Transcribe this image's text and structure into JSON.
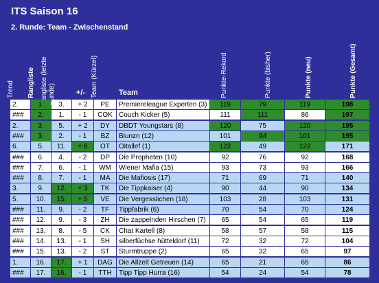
{
  "header": {
    "title": "ITS Saison 16",
    "subtitle": "2. Runde: Team - Zwischenstand"
  },
  "table": {
    "columns": [
      "Trend",
      "Rangliste",
      "Rangliste (letzte Runde)",
      "+/-",
      "Team (Kürzel)",
      "Team",
      "Punkte-Rekord",
      "Punkte (bisher)",
      "Punkte (neu)",
      "Punkte (Gesamt)"
    ],
    "rows": [
      [
        "2.",
        "1.",
        "3.",
        "+ 2",
        "PE",
        "Premiereleague Experten (3)",
        "119",
        "79",
        "119",
        "198"
      ],
      [
        "###",
        "2.",
        "1.",
        "- 1",
        "COK",
        "Couch Kicker (5)",
        "111",
        "111",
        "86",
        "197"
      ],
      [
        "2.",
        "3.",
        "5.",
        "+ 2",
        "DY",
        "DBDT Youngstars (8)",
        "120",
        "75",
        "120",
        "195"
      ],
      [
        "###",
        "3.",
        "2.",
        "- 1",
        "BZ",
        "Blunzn (12)",
        "101",
        "94",
        "101",
        "195"
      ],
      [
        "6.",
        "5.",
        "11.",
        "+ 6",
        "OT",
        "Oitallef (1)",
        "122",
        "49",
        "122",
        "171"
      ],
      [
        "###",
        "6.",
        "4.",
        "- 2",
        "DP",
        "Die Propheten (10)",
        "92",
        "76",
        "92",
        "168"
      ],
      [
        "###",
        "7.",
        "6.",
        "- 1",
        "WM",
        "Wiener Mafia (15)",
        "93",
        "73",
        "93",
        "166"
      ],
      [
        "###",
        "8.",
        "7.",
        "- 1",
        "MA",
        "Die Mafiosis (17)",
        "71",
        "69",
        "71",
        "140"
      ],
      [
        "3.",
        "9.",
        "12.",
        "+ 3",
        "TK",
        "Die Tippkaiser (4)",
        "90",
        "44",
        "90",
        "134"
      ],
      [
        "5.",
        "10.",
        "15.",
        "+ 5",
        "VE",
        "Die Vergesslichen (18)",
        "103",
        "28",
        "103",
        "131"
      ],
      [
        "###",
        "11.",
        "9.",
        "- 2",
        "TF",
        "Tippfabrik (6)",
        "70",
        "54",
        "70",
        "124"
      ],
      [
        "###",
        "12.",
        "9.",
        "- 3",
        "ZH",
        "Die zappelnden Hirschen (7)",
        "65",
        "54",
        "65",
        "119"
      ],
      [
        "###",
        "13.",
        "8.",
        "- 5",
        "CK",
        "Chat Kartell (8)",
        "58",
        "57",
        "58",
        "115"
      ],
      [
        "###",
        "14.",
        "13.",
        "- 1",
        "SH",
        "silberfüchse hütteldorf (11)",
        "72",
        "32",
        "72",
        "104"
      ],
      [
        "###",
        "15.",
        "13.",
        "- 2",
        "ST",
        "Sturmtruppe (2)",
        "65",
        "32",
        "65",
        "97"
      ],
      [
        "1.",
        "16.",
        "17.",
        "+ 1",
        "DAG",
        "Die Allzeit Getreuen (14)",
        "65",
        "21",
        "65",
        "86"
      ],
      [
        "###",
        "17.",
        "16.",
        "- 1",
        "TTH",
        "Tipp Tipp Hurra (16)",
        "54",
        "24",
        "54",
        "78"
      ]
    ]
  }
}
